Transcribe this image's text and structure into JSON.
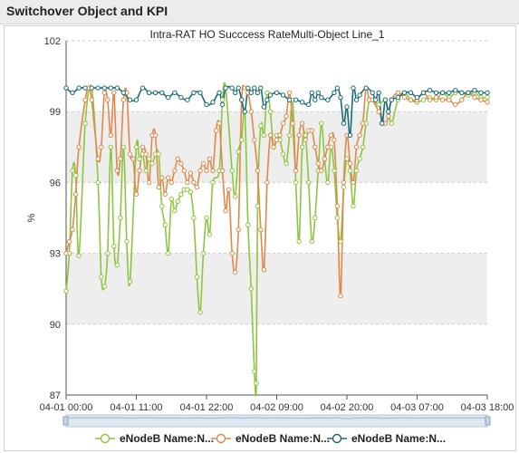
{
  "header": {
    "title": "Switchover Object and KPI"
  },
  "chart_data": {
    "type": "line",
    "title": "Intra-RAT HO Succcess RateMulti-Object Line_1",
    "ylabel": "%",
    "xlabel": "",
    "ylim": [
      87,
      102
    ],
    "yticks": [
      87,
      90,
      93,
      96,
      99,
      102
    ],
    "grid": true,
    "legend_position": "bottom",
    "x_ticks": [
      "04-01 00:00",
      "04-01 11:00",
      "04-01 22:00",
      "04-02 09:00",
      "04-02 20:00",
      "04-03 07:00",
      "04-03 18:00"
    ],
    "x_range_hours": [
      0,
      66
    ],
    "colors": [
      "#8cc63f",
      "#e0884a",
      "#1a6b74"
    ],
    "series": [
      {
        "name": "eNodeB Name:N...",
        "color": "#8cc63f",
        "points": [
          [
            0,
            91.4
          ],
          [
            0.5,
            93
          ],
          [
            1,
            96.5
          ],
          [
            1.5,
            96.3
          ],
          [
            2,
            92.9
          ],
          [
            3,
            98.5
          ],
          [
            4,
            100
          ],
          [
            5,
            96
          ],
          [
            5.5,
            92
          ],
          [
            6,
            91.6
          ],
          [
            6.5,
            93
          ],
          [
            7,
            97.5
          ],
          [
            7.5,
            93.3
          ],
          [
            8,
            92.5
          ],
          [
            8.5,
            94.5
          ],
          [
            9,
            97.5
          ],
          [
            9.5,
            93.5
          ],
          [
            10,
            91.8
          ],
          [
            11,
            97.5
          ],
          [
            11.5,
            97
          ],
          [
            12,
            97.2
          ],
          [
            12.5,
            96.5
          ],
          [
            13,
            97
          ],
          [
            13.5,
            96.8
          ],
          [
            14,
            97.2
          ],
          [
            14.5,
            97.2
          ],
          [
            15,
            95
          ],
          [
            15.5,
            94.2
          ],
          [
            16,
            93
          ],
          [
            16.5,
            95.3
          ],
          [
            17,
            94.8
          ],
          [
            17.5,
            95.2
          ],
          [
            18,
            95.5
          ],
          [
            18.5,
            95.7
          ],
          [
            19,
            95.7
          ],
          [
            19.5,
            95.6
          ],
          [
            20,
            94.5
          ],
          [
            20.5,
            92
          ],
          [
            21,
            90.5
          ],
          [
            21.5,
            93
          ],
          [
            22,
            94.5
          ],
          [
            22.5,
            93.8
          ],
          [
            23,
            96
          ],
          [
            24,
            96.5
          ],
          [
            24.5,
            99.5
          ],
          [
            25,
            100
          ],
          [
            26,
            96.5
          ],
          [
            26.5,
            95.4
          ],
          [
            27,
            97.3
          ],
          [
            27.5,
            97.8
          ],
          [
            28,
            99
          ],
          [
            28.5,
            94.2
          ],
          [
            29,
            91.5
          ],
          [
            29.5,
            88
          ],
          [
            29.8,
            87.5
          ],
          [
            30,
            95
          ],
          [
            30.5,
            98.4
          ],
          [
            31,
            98
          ],
          [
            31.5,
            99.8
          ],
          [
            32,
            99
          ],
          [
            32.5,
            97.5
          ],
          [
            33,
            98
          ],
          [
            33.5,
            97.8
          ],
          [
            34,
            97.2
          ],
          [
            34.5,
            96.8
          ],
          [
            35,
            98
          ],
          [
            35.5,
            99.5
          ],
          [
            36,
            96
          ],
          [
            36.5,
            93.5
          ],
          [
            37,
            97.5
          ],
          [
            37.5,
            98
          ],
          [
            38,
            96
          ],
          [
            38.5,
            93.5
          ],
          [
            39,
            94.5
          ],
          [
            39.5,
            96.5
          ],
          [
            40,
            98.5
          ],
          [
            40.5,
            97
          ],
          [
            41,
            96
          ],
          [
            41.5,
            97.5
          ],
          [
            42,
            96.5
          ],
          [
            42.5,
            94.5
          ],
          [
            43,
            93.5
          ],
          [
            43.5,
            95.8
          ],
          [
            44,
            97
          ],
          [
            44.5,
            96.5
          ],
          [
            45,
            95
          ],
          [
            45.5,
            96.5
          ],
          [
            46,
            97
          ],
          [
            46.5,
            97.5
          ],
          [
            47,
            98.5
          ],
          [
            47.5,
            99.5
          ],
          [
            48,
            99.5
          ],
          [
            49,
            99.3
          ],
          [
            50,
            99.5
          ],
          [
            50.5,
            99
          ],
          [
            51,
            98.5
          ],
          [
            52,
            99.5
          ],
          [
            53,
            99.8
          ],
          [
            54,
            99.5
          ],
          [
            55,
            99.4
          ],
          [
            56,
            99.5
          ],
          [
            57,
            99.6
          ],
          [
            58,
            99.5
          ],
          [
            59,
            99.8
          ],
          [
            60,
            99.6
          ],
          [
            61,
            99.8
          ],
          [
            62,
            99.8
          ],
          [
            63,
            99.7
          ],
          [
            64,
            99.8
          ],
          [
            65,
            99.6
          ],
          [
            66,
            99.6
          ]
        ]
      },
      {
        "name": "eNodeB Name:N...",
        "color": "#e0884a",
        "points": [
          [
            0,
            93
          ],
          [
            0.5,
            93.5
          ],
          [
            1,
            94
          ],
          [
            1.5,
            95.5
          ],
          [
            2,
            97.5
          ],
          [
            3,
            99.5
          ],
          [
            3.5,
            100
          ],
          [
            4,
            99.5
          ],
          [
            5,
            97
          ],
          [
            5.5,
            97.5
          ],
          [
            6,
            99.8
          ],
          [
            6.5,
            99.5
          ],
          [
            7,
            98
          ],
          [
            7.5,
            99.8
          ],
          [
            8,
            96.5
          ],
          [
            8.5,
            97
          ],
          [
            9,
            99.5
          ],
          [
            9.5,
            99.8
          ],
          [
            10,
            97.2
          ],
          [
            10.5,
            97
          ],
          [
            11,
            95.5
          ],
          [
            11.5,
            96.5
          ],
          [
            12,
            97.5
          ],
          [
            12.5,
            97.2
          ],
          [
            13,
            96
          ],
          [
            13.5,
            98
          ],
          [
            14,
            98
          ],
          [
            14.5,
            95.8
          ],
          [
            15,
            96.2
          ],
          [
            15.5,
            95.5
          ],
          [
            16,
            96.2
          ],
          [
            16.5,
            96
          ],
          [
            17,
            96.5
          ],
          [
            17.5,
            97
          ],
          [
            18,
            96.8
          ],
          [
            18.5,
            96.5
          ],
          [
            19,
            96
          ],
          [
            19.5,
            96.4
          ],
          [
            20,
            96
          ],
          [
            20.5,
            95.8
          ],
          [
            21,
            96.5
          ],
          [
            21.5,
            96.8
          ],
          [
            22,
            96.5
          ],
          [
            22.5,
            97
          ],
          [
            23,
            96.5
          ],
          [
            23.5,
            98.2
          ],
          [
            24,
            98.5
          ],
          [
            24.5,
            96.5
          ],
          [
            25,
            94.8
          ],
          [
            25.5,
            95.7
          ],
          [
            26,
            93
          ],
          [
            26.5,
            92.2
          ],
          [
            27,
            94
          ],
          [
            27.5,
            99.5
          ],
          [
            28,
            100
          ],
          [
            28.5,
            99.8
          ],
          [
            29,
            99
          ],
          [
            29.5,
            97.8
          ],
          [
            30,
            96.5
          ],
          [
            30.5,
            94
          ],
          [
            31,
            92.3
          ],
          [
            31.5,
            96
          ],
          [
            32,
            98
          ],
          [
            32.5,
            97.5
          ],
          [
            33,
            97.8
          ],
          [
            33.5,
            98
          ],
          [
            34,
            98.5
          ],
          [
            34.5,
            98.8
          ],
          [
            35,
            99.8
          ],
          [
            35.5,
            98.5
          ],
          [
            36,
            96.5
          ],
          [
            36.5,
            98
          ],
          [
            37,
            98.5
          ],
          [
            37.5,
            97.8
          ],
          [
            38,
            98.2
          ],
          [
            38.5,
            98.2
          ],
          [
            39,
            97.5
          ],
          [
            39.5,
            96.8
          ],
          [
            40,
            96.5
          ],
          [
            40.5,
            97
          ],
          [
            41,
            97.5
          ],
          [
            41.5,
            98
          ],
          [
            42,
            97.8
          ],
          [
            42.5,
            95
          ],
          [
            43,
            91.2
          ],
          [
            43.5,
            96
          ],
          [
            44,
            98
          ],
          [
            44.5,
            96.8
          ],
          [
            45,
            96
          ],
          [
            45.5,
            97.5
          ],
          [
            46,
            98
          ],
          [
            46.5,
            98.5
          ],
          [
            47,
            100
          ],
          [
            47.5,
            99.5
          ],
          [
            48,
            99.5
          ],
          [
            49,
            99
          ],
          [
            50,
            98.5
          ],
          [
            50.5,
            98.8
          ],
          [
            51,
            99.5
          ],
          [
            52,
            99.8
          ],
          [
            53,
            99.6
          ],
          [
            54,
            99.5
          ],
          [
            55,
            99.5
          ],
          [
            56,
            99.8
          ],
          [
            57,
            99.5
          ],
          [
            58,
            99.6
          ],
          [
            59,
            99.5
          ],
          [
            60,
            99.5
          ],
          [
            61,
            99.3
          ],
          [
            62,
            99.5
          ],
          [
            63,
            99.8
          ],
          [
            64,
            99.6
          ],
          [
            65,
            99.5
          ],
          [
            66,
            99.4
          ]
        ]
      },
      {
        "name": "eNodeB Name:N...",
        "color": "#1a6b74",
        "points": [
          [
            0,
            100
          ],
          [
            1,
            99.8
          ],
          [
            2,
            100
          ],
          [
            3,
            100
          ],
          [
            4,
            100
          ],
          [
            5,
            100
          ],
          [
            6,
            100
          ],
          [
            7,
            100
          ],
          [
            8,
            100
          ],
          [
            9,
            99.8
          ],
          [
            10,
            99.5
          ],
          [
            11,
            99.5
          ],
          [
            12,
            100
          ],
          [
            13,
            99.8
          ],
          [
            14,
            99.8
          ],
          [
            15,
            99.8
          ],
          [
            16,
            99.6
          ],
          [
            17,
            99.8
          ],
          [
            18,
            99.6
          ],
          [
            19,
            99.5
          ],
          [
            20,
            99.8
          ],
          [
            21,
            99.8
          ],
          [
            22,
            99.3
          ],
          [
            23,
            99.4
          ],
          [
            24,
            99.8
          ],
          [
            24.5,
            99.3
          ],
          [
            25,
            100
          ],
          [
            26,
            100
          ],
          [
            26.5,
            99.8
          ],
          [
            27,
            100
          ],
          [
            27.5,
            99.5
          ],
          [
            28,
            99
          ],
          [
            28.5,
            100
          ],
          [
            29,
            99.8
          ],
          [
            29.5,
            100
          ],
          [
            30,
            99.8
          ],
          [
            30.5,
            100
          ],
          [
            31,
            99.2
          ],
          [
            31.5,
            99.5
          ],
          [
            32,
            99.7
          ],
          [
            33,
            99.8
          ],
          [
            34,
            99.7
          ],
          [
            35,
            99.5
          ],
          [
            36,
            99.5
          ],
          [
            37,
            99.4
          ],
          [
            38,
            99.3
          ],
          [
            38.5,
            99.8
          ],
          [
            39,
            99.5
          ],
          [
            39.5,
            99.8
          ],
          [
            40,
            99.6
          ],
          [
            41,
            99.5
          ],
          [
            42,
            99.8
          ],
          [
            42.5,
            100
          ],
          [
            43,
            99.6
          ],
          [
            43.5,
            98.5
          ],
          [
            44,
            99.2
          ],
          [
            44.5,
            98
          ],
          [
            45,
            100
          ],
          [
            45.5,
            99.5
          ],
          [
            46,
            99.7
          ],
          [
            47,
            100
          ],
          [
            48,
            99.8
          ],
          [
            48.5,
            99.5
          ],
          [
            49,
            99.8
          ],
          [
            49.5,
            98.5
          ],
          [
            50,
            99.5
          ],
          [
            50.5,
            99
          ],
          [
            51,
            99.5
          ],
          [
            52,
            99.6
          ],
          [
            53,
            99.8
          ],
          [
            54,
            99.8
          ],
          [
            55,
            99.6
          ],
          [
            56,
            99.8
          ],
          [
            57,
            99.9
          ],
          [
            58,
            99.8
          ],
          [
            59,
            99.8
          ],
          [
            60,
            99.8
          ],
          [
            61,
            99.9
          ],
          [
            62,
            99.8
          ],
          [
            63,
            99.8
          ],
          [
            64,
            99.9
          ],
          [
            65,
            99.8
          ],
          [
            66,
            99.8
          ]
        ]
      }
    ]
  }
}
